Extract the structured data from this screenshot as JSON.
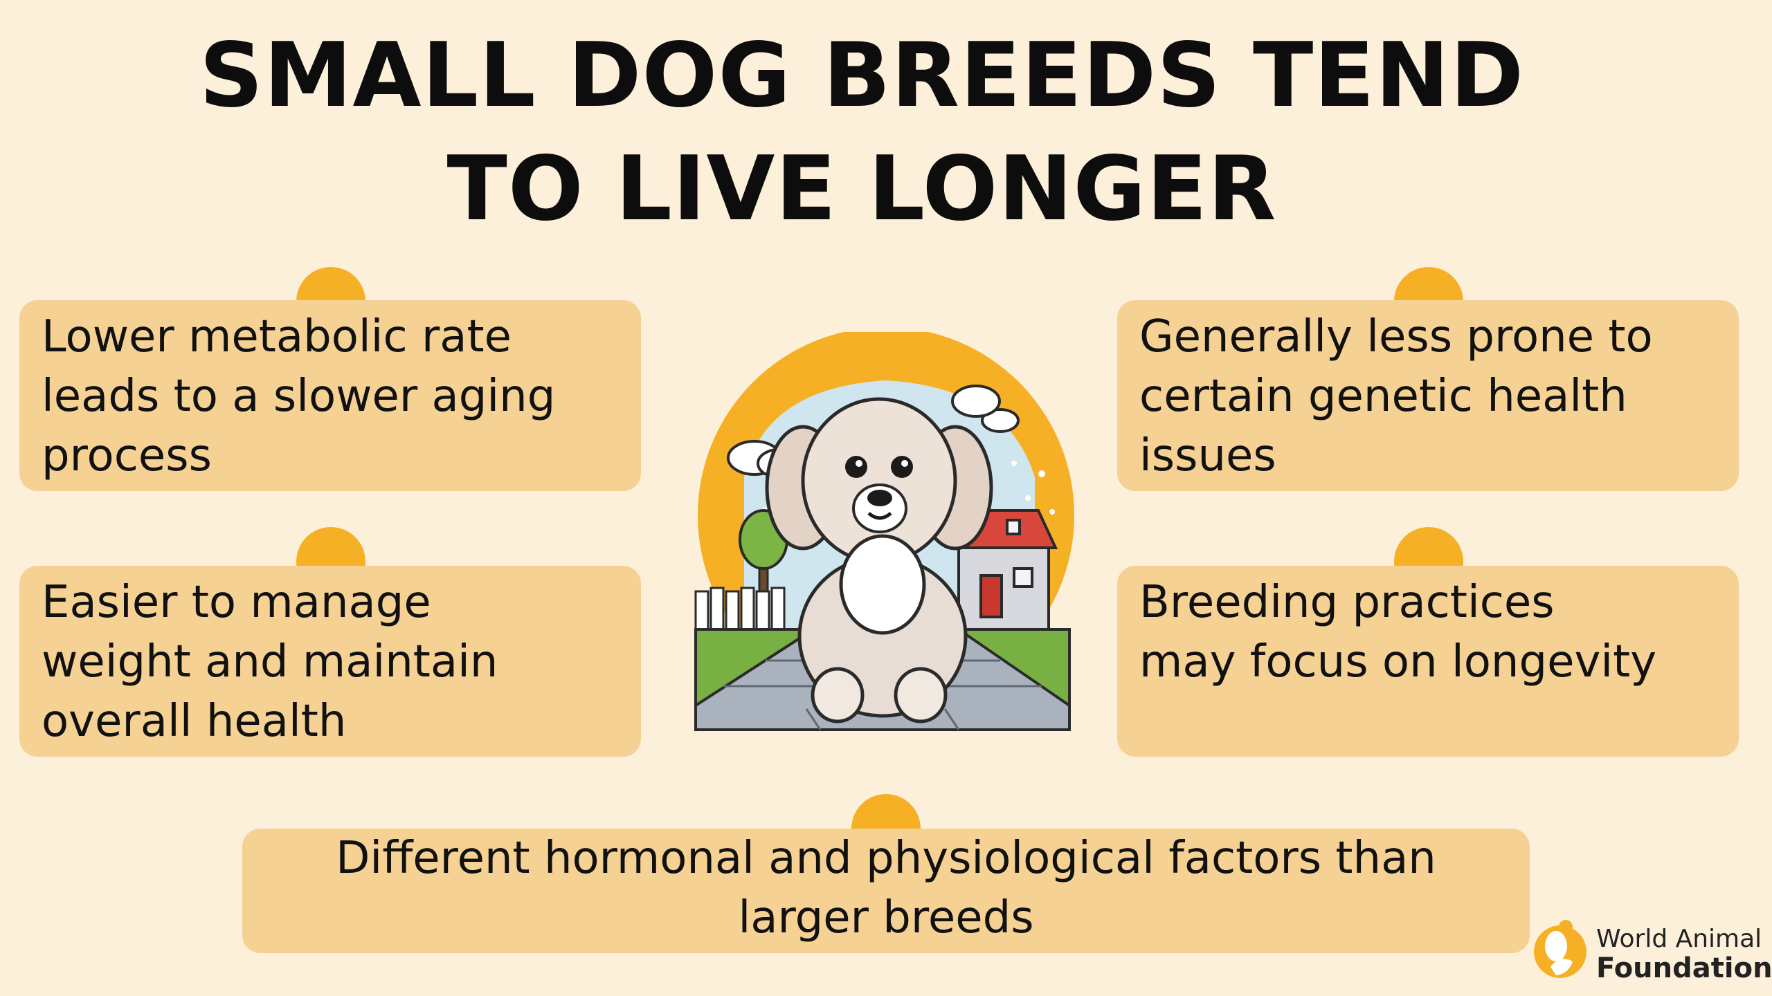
{
  "title": {
    "line1": "SMALL DOG BREEDS TEND",
    "line2": "TO LIVE LONGER"
  },
  "cards": {
    "top_left": {
      "lines": [
        "Lower metabolic rate",
        "leads to a slower aging",
        "process"
      ]
    },
    "middle_left": {
      "lines": [
        "Easier to manage",
        "weight and maintain",
        "overall health"
      ]
    },
    "top_right": {
      "lines": [
        "Generally less prone to",
        "certain genetic health",
        "issues"
      ]
    },
    "middle_right": {
      "lines": [
        "Breeding practices",
        "may focus on longevity"
      ]
    },
    "bottom": {
      "lines": [
        "Different hormonal and physiological factors than",
        "larger breeds"
      ]
    }
  },
  "illustration": {
    "icon": "dog-icon"
  },
  "logo": {
    "line1": "World Animal",
    "line2": "Foundation",
    "icon": "foundation-logo-icon"
  },
  "colors": {
    "background": "#fdf0da",
    "card": "#f5d194",
    "accent": "#f5b025",
    "text": "#111111"
  }
}
